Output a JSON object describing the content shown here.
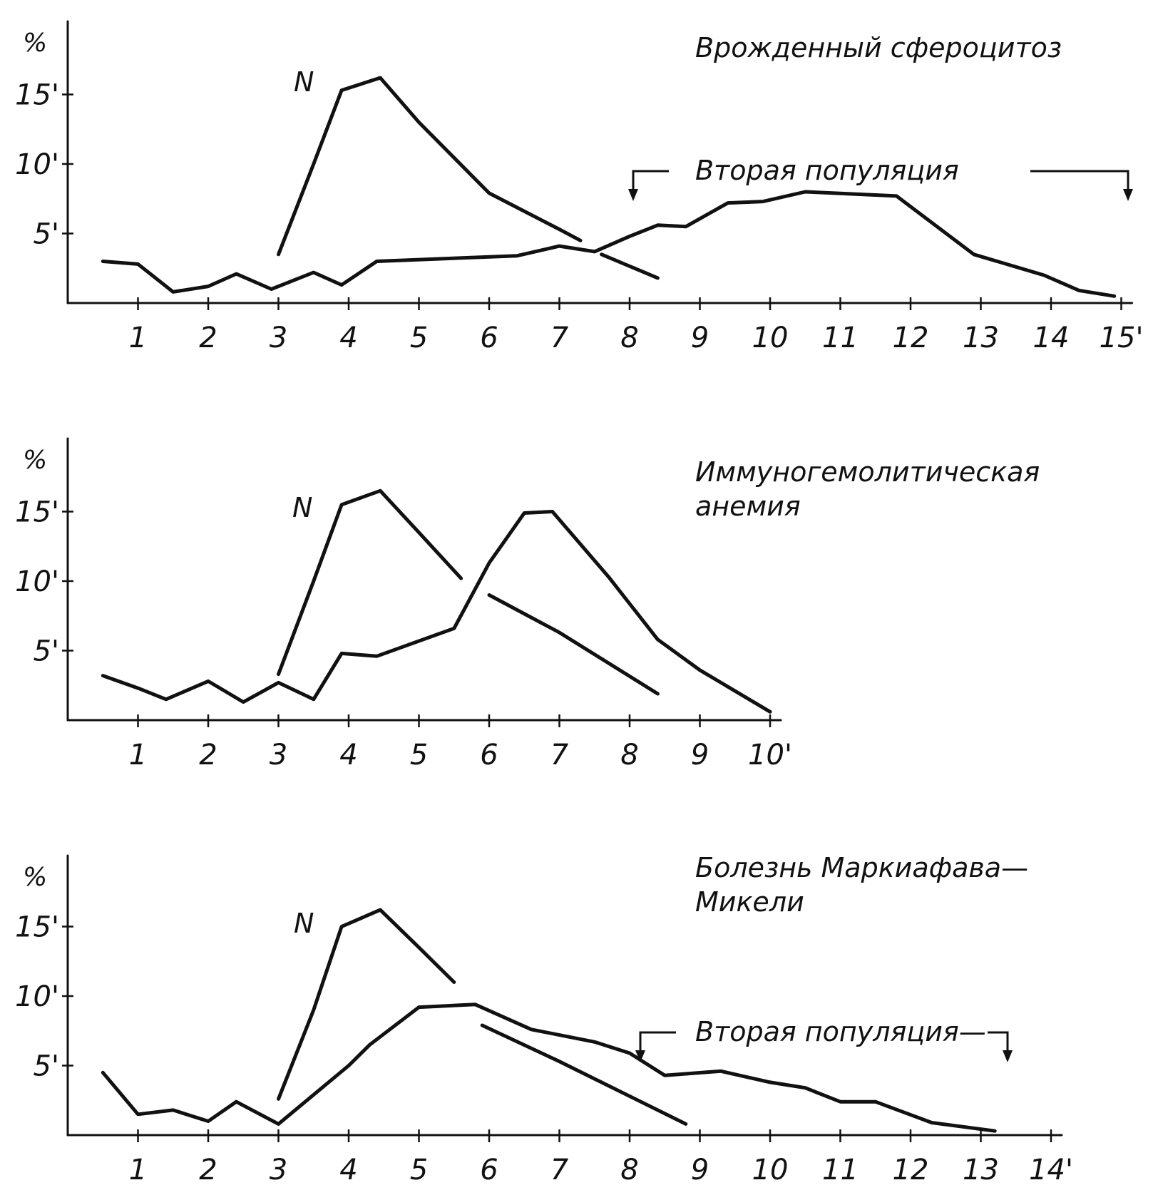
{
  "chart_data": [
    {
      "type": "line",
      "title": "Врожденный сфероцитоз",
      "ylabel": "%",
      "y_ticks": [
        "5'",
        "10'",
        "15'"
      ],
      "y_tick_values": [
        5,
        10,
        15
      ],
      "x_ticks": [
        "1",
        "2",
        "3",
        "4",
        "5",
        "6",
        "7",
        "8",
        "9",
        "10",
        "11",
        "12",
        "13",
        "14",
        "15'"
      ],
      "xlim": [
        0,
        15
      ],
      "ylim": [
        0,
        20
      ],
      "annotation": "Вторая популяция",
      "annotation_span": [
        8,
        15
      ],
      "series": [
        {
          "name": "N",
          "segments": [
            [
              [
                3,
                3.5
              ],
              [
                3.5,
                10
              ],
              [
                3.9,
                15.3
              ],
              [
                4.45,
                16.2
              ],
              [
                5,
                13
              ],
              [
                6,
                7.9
              ],
              [
                7,
                5.3
              ],
              [
                7.3,
                4.5
              ]
            ],
            [
              [
                7.6,
                3.5
              ],
              [
                8.4,
                1.8
              ]
            ]
          ]
        },
        {
          "name": "",
          "segments": [
            [
              [
                0.5,
                3
              ],
              [
                1,
                2.8
              ],
              [
                1.5,
                0.8
              ],
              [
                2,
                1.2
              ],
              [
                2.4,
                2.1
              ],
              [
                2.9,
                1.0
              ],
              [
                3.5,
                2.2
              ],
              [
                3.9,
                1.3
              ],
              [
                4.4,
                3.0
              ],
              [
                6.4,
                3.4
              ],
              [
                7,
                4.1
              ],
              [
                7.5,
                3.7
              ],
              [
                8,
                4.8
              ],
              [
                8.4,
                5.6
              ],
              [
                8.8,
                5.5
              ],
              [
                9.4,
                7.2
              ],
              [
                9.9,
                7.3
              ],
              [
                10.5,
                8.0
              ],
              [
                11.8,
                7.7
              ],
              [
                12.9,
                3.5
              ],
              [
                13.9,
                2.0
              ],
              [
                14.4,
                0.9
              ],
              [
                14.9,
                0.5
              ]
            ]
          ]
        }
      ]
    },
    {
      "type": "line",
      "title": "Иммуногемолитическая анемия",
      "ylabel": "%",
      "y_ticks": [
        "5'",
        "10'",
        "15'"
      ],
      "y_tick_values": [
        5,
        10,
        15
      ],
      "x_ticks": [
        "1",
        "2",
        "3",
        "4",
        "5",
        "6",
        "7",
        "8",
        "9",
        "10'"
      ],
      "xlim": [
        0,
        10
      ],
      "ylim": [
        0,
        20
      ],
      "series": [
        {
          "name": "N",
          "segments": [
            [
              [
                3,
                3.3
              ],
              [
                3.5,
                10
              ],
              [
                3.9,
                15.5
              ],
              [
                4.45,
                16.5
              ],
              [
                5,
                13.5
              ],
              [
                5.6,
                10.2
              ]
            ],
            [
              [
                6.0,
                9.0
              ],
              [
                7,
                6.3
              ],
              [
                8.4,
                1.9
              ]
            ]
          ]
        },
        {
          "name": "",
          "segments": [
            [
              [
                0.5,
                3.2
              ],
              [
                1.0,
                2.3
              ],
              [
                1.4,
                1.5
              ],
              [
                2.0,
                2.8
              ],
              [
                2.5,
                1.3
              ],
              [
                3.0,
                2.7
              ],
              [
                3.5,
                1.5
              ],
              [
                3.9,
                4.8
              ],
              [
                4.4,
                4.6
              ],
              [
                5.5,
                6.6
              ],
              [
                6.0,
                11.3
              ],
              [
                6.5,
                14.9
              ],
              [
                6.9,
                15.0
              ],
              [
                7.7,
                10.3
              ],
              [
                8.4,
                5.8
              ],
              [
                9.0,
                3.6
              ],
              [
                10.0,
                0.6
              ]
            ]
          ]
        }
      ]
    },
    {
      "type": "line",
      "title": "Болезнь Маркиафава— Микели",
      "ylabel": "%",
      "y_ticks": [
        "5'",
        "10'",
        "15'"
      ],
      "y_tick_values": [
        5,
        10,
        15
      ],
      "x_ticks": [
        "1",
        "2",
        "3",
        "4",
        "5",
        "6",
        "7",
        "8",
        "9",
        "10",
        "11",
        "12",
        "13",
        "14'"
      ],
      "xlim": [
        0,
        14
      ],
      "ylim": [
        0,
        20
      ],
      "annotation": "Вторая популяция—",
      "annotation_span": [
        8,
        13.5
      ],
      "series": [
        {
          "name": "N",
          "segments": [
            [
              [
                3,
                2.6
              ],
              [
                3.5,
                9
              ],
              [
                3.9,
                15.0
              ],
              [
                4.45,
                16.2
              ],
              [
                5,
                13.5
              ],
              [
                5.5,
                11.0
              ]
            ],
            [
              [
                5.9,
                7.9
              ],
              [
                7,
                5.3
              ],
              [
                8.8,
                0.8
              ]
            ]
          ]
        },
        {
          "name": "",
          "segments": [
            [
              [
                0.5,
                4.5
              ],
              [
                1.0,
                1.5
              ],
              [
                1.5,
                1.8
              ],
              [
                2.0,
                1.0
              ],
              [
                2.4,
                2.4
              ],
              [
                3.0,
                0.8
              ],
              [
                4.0,
                5.0
              ],
              [
                4.3,
                6.5
              ],
              [
                5.0,
                9.2
              ],
              [
                5.8,
                9.4
              ],
              [
                6.6,
                7.6
              ],
              [
                7.5,
                6.7
              ],
              [
                8.0,
                5.9
              ],
              [
                8.5,
                4.3
              ],
              [
                9.3,
                4.6
              ],
              [
                10.0,
                3.8
              ],
              [
                10.5,
                3.4
              ],
              [
                11.0,
                2.4
              ],
              [
                11.5,
                2.4
              ],
              [
                12.3,
                0.9
              ],
              [
                13.2,
                0.3
              ]
            ]
          ]
        }
      ]
    }
  ],
  "labels": {
    "n_label": "N"
  }
}
